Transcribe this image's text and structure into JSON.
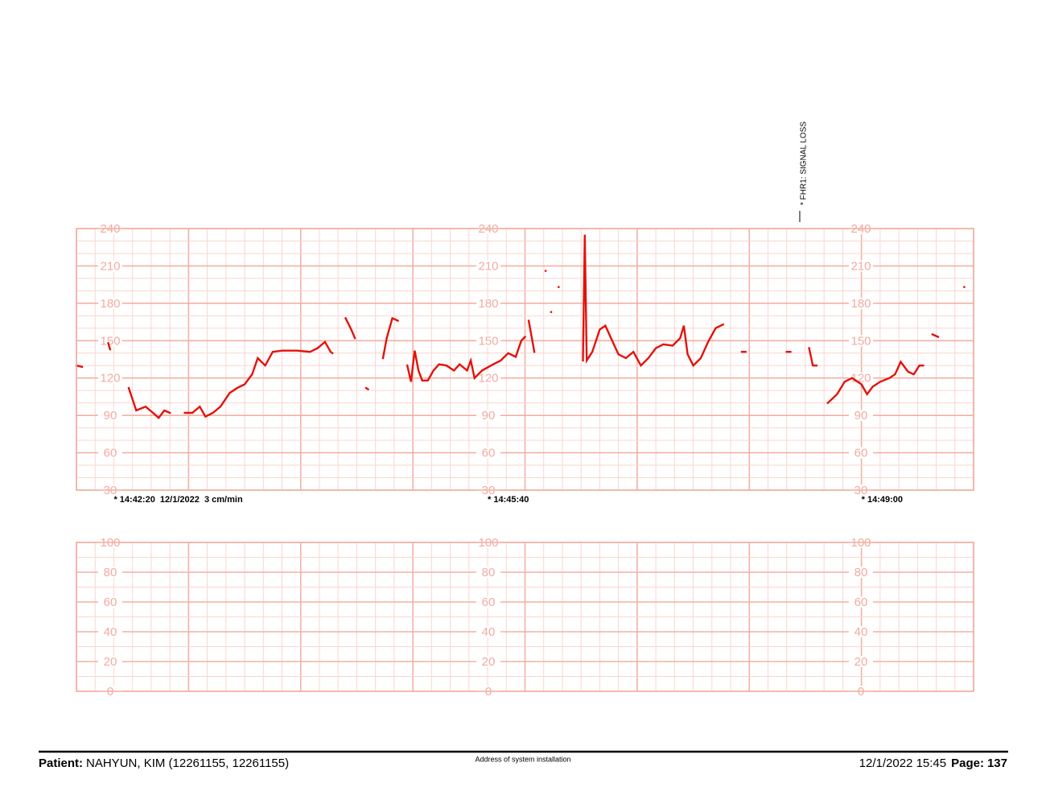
{
  "chart_data": [
    {
      "type": "line",
      "color": "#e3120b",
      "xlim": [
        "14:42:00",
        "14:50:00"
      ],
      "ylim": [
        30,
        240
      ],
      "yticks": [
        30,
        60,
        90,
        120,
        150,
        180,
        210,
        240
      ],
      "annotations": [
        {
          "x": "14:42:20",
          "text": "* 14:42:20  12/1/2022  3 cm/min"
        },
        {
          "x": "14:45:40",
          "text": "* 14:45:40"
        },
        {
          "x": "14:49:00",
          "text": "* 14:49:00"
        }
      ],
      "events": [
        {
          "x": "14:48:27",
          "text": "* FHR1: SIGNAL LOSS"
        }
      ],
      "x": [
        "14:42:00",
        "14:42:03",
        "14:42:10",
        "14:42:17",
        "14:42:18",
        "14:42:23",
        "14:42:28",
        "14:42:32",
        "14:42:37",
        "14:42:41",
        "14:42:44",
        "14:42:47",
        "14:42:50",
        "14:42:54",
        "14:42:58",
        "14:43:02",
        "14:43:06",
        "14:43:09",
        "14:43:13",
        "14:43:17",
        "14:43:22",
        "14:43:26",
        "14:43:30",
        "14:43:34",
        "14:43:37",
        "14:43:41",
        "14:43:45",
        "14:43:50",
        "14:43:58",
        "14:44:05",
        "14:44:09",
        "14:44:13",
        "14:44:16",
        "14:44:17",
        "14:44:20",
        "14:44:24",
        "14:44:27",
        "14:44:29",
        "14:44:32",
        "14:44:35",
        "14:44:36",
        "14:44:40",
        "14:44:44",
        "14:44:46",
        "14:44:49",
        "14:44:52",
        "14:44:55",
        "14:44:57",
        "14:44:59",
        "14:45:01",
        "14:45:03",
        "14:45:05",
        "14:45:08",
        "14:45:11",
        "14:45:14",
        "14:45:18",
        "14:45:22",
        "14:45:25",
        "14:45:29",
        "14:45:31",
        "14:45:33",
        "14:45:37",
        "14:45:43",
        "14:45:47",
        "14:45:51",
        "14:45:55",
        "14:45:58",
        "14:46:00",
        "14:46:01",
        "14:46:02",
        "14:46:05",
        "14:46:08",
        "14:46:11",
        "14:46:12",
        "14:46:14",
        "14:46:15",
        "14:46:18",
        "14:46:20",
        "14:46:31",
        "14:46:32",
        "14:46:33",
        "14:46:36",
        "14:46:40",
        "14:46:43",
        "14:46:46",
        "14:46:50",
        "14:46:54",
        "14:46:58",
        "14:47:02",
        "14:47:06",
        "14:47:10",
        "14:47:14",
        "14:47:19",
        "14:47:23",
        "14:47:25",
        "14:47:27",
        "14:47:30",
        "14:47:34",
        "14:47:38",
        "14:47:42",
        "14:47:46",
        "14:47:50",
        "14:47:56",
        "14:47:58",
        "14:48:10",
        "14:48:20",
        "14:48:22",
        "14:48:27",
        "14:48:32",
        "14:48:34",
        "14:48:36",
        "14:48:39",
        "14:48:42",
        "14:48:47",
        "14:48:51",
        "14:48:55",
        "14:49:00",
        "14:49:03",
        "14:49:06",
        "14:49:10",
        "14:49:15",
        "14:49:18",
        "14:49:21",
        "14:49:25",
        "14:49:28",
        "14:49:31",
        "14:49:33",
        "14:49:36",
        "14:49:38",
        "14:49:41",
        "14:49:47",
        "14:49:55"
      ],
      "values": [
        130,
        129,
        null,
        148,
        143,
        null,
        112,
        94,
        97,
        92,
        88,
        94,
        92,
        null,
        92,
        92,
        97,
        89,
        92,
        97,
        108,
        112,
        115,
        123,
        136,
        130,
        141,
        142,
        142,
        141,
        144,
        149,
        141,
        140,
        null,
        168,
        159,
        152,
        null,
        112,
        111,
        null,
        136,
        152,
        168,
        166,
        null,
        130,
        117,
        142,
        126,
        118,
        118,
        126,
        131,
        130,
        126,
        131,
        126,
        134,
        120,
        126,
        131,
        134,
        140,
        137,
        150,
        153,
        null,
        166,
        141,
        null,
        206,
        null,
        173,
        null,
        193,
        null,
        134,
        235,
        134,
        141,
        159,
        162,
        152,
        139,
        136,
        141,
        130,
        136,
        144,
        147,
        146,
        152,
        162,
        139,
        130,
        136,
        149,
        160,
        163,
        null,
        141,
        141,
        null,
        141,
        141,
        null,
        144,
        130,
        130,
        null,
        100,
        107,
        117,
        120,
        115,
        107,
        113,
        117,
        120,
        123,
        133,
        125,
        123,
        130,
        130,
        null,
        155,
        153,
        null,
        193
      ]
    },
    {
      "type": "line",
      "ylim": [
        0,
        100
      ],
      "yticks": [
        0,
        20,
        40,
        60,
        80,
        100
      ]
    }
  ],
  "footer": {
    "patient_label": "Patient:",
    "patient": "NAHYUN, KIM (12261155, 12261155)",
    "address": "Address of system installation",
    "printed": "12/1/2022 15:45",
    "page_label": "Page:",
    "page": "137"
  }
}
